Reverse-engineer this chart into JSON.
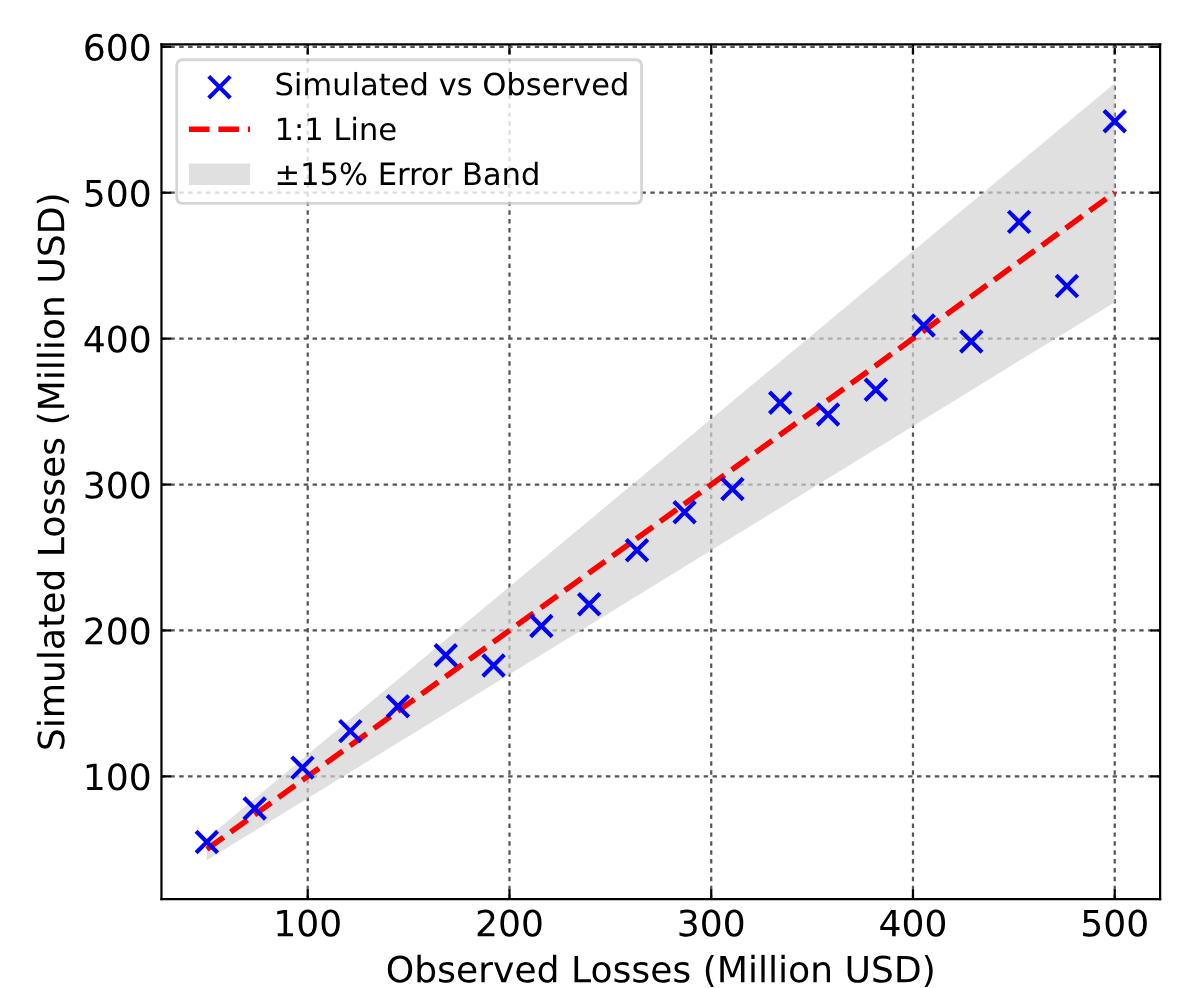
{
  "chart_data": {
    "type": "scatter",
    "xlabel": "Observed Losses (Million USD)",
    "ylabel": "Simulated Losses (Million USD)",
    "xlim": [
      27.5,
      522.5
    ],
    "ylim": [
      15.9,
      601.6
    ],
    "xticks": [
      100,
      200,
      300,
      400,
      500
    ],
    "yticks": [
      100,
      200,
      300,
      400,
      500,
      600
    ],
    "grid": true,
    "legend": "top left",
    "series": [
      {
        "name": "Simulated vs Observed",
        "type": "scatter",
        "marker": "cross",
        "color": "#0000ff",
        "x": [
          50,
          73.7,
          97.4,
          121.1,
          144.7,
          168.4,
          192.1,
          215.8,
          239.5,
          263.2,
          286.8,
          310.5,
          334.2,
          357.9,
          381.6,
          405.3,
          428.9,
          452.6,
          476.3,
          500
        ],
        "values": [
          55,
          78,
          106,
          131,
          148,
          183,
          176,
          203,
          218,
          255,
          281,
          297,
          356,
          348,
          365,
          409,
          398,
          480,
          436,
          549
        ]
      },
      {
        "name": "1:1 Line",
        "type": "line",
        "line_style": "dashed",
        "color": "#ff0000",
        "x": [
          50,
          500
        ],
        "values": [
          50,
          500
        ]
      },
      {
        "name": "±15% Error Band",
        "type": "area",
        "color": "#d3d3d3",
        "x": [
          50,
          500,
          500,
          50
        ],
        "values": [
          42.5,
          425,
          575,
          57.5
        ]
      }
    ]
  }
}
